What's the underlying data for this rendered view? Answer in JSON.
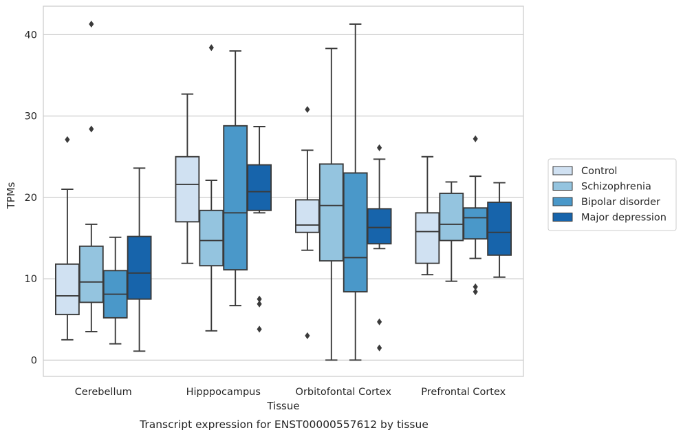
{
  "chart_data": {
    "type": "box",
    "title": "",
    "caption": "Transcript expression for ENST00000557612 by tissue",
    "xlabel": "Tissue",
    "ylabel": "TPMs",
    "ylim": [
      -2,
      43.5
    ],
    "yticks": [
      0,
      10,
      20,
      30,
      40
    ],
    "grid": "horizontal",
    "legend_position": "right",
    "categories": [
      "Cerebellum",
      "Hipppocampus",
      "Orbitofontal Cortex",
      "Prefrontal Cortex"
    ],
    "series": [
      {
        "name": "Control",
        "color": "#d0e1f2",
        "boxes": [
          {
            "whisker_low": 2.5,
            "q1": 5.6,
            "median": 7.9,
            "q3": 11.8,
            "whisker_high": 21.0,
            "outliers": [
              27.1
            ]
          },
          {
            "whisker_low": 11.9,
            "q1": 17.0,
            "median": 21.6,
            "q3": 25.0,
            "whisker_high": 32.7,
            "outliers": []
          },
          {
            "whisker_low": 13.5,
            "q1": 15.7,
            "median": 16.6,
            "q3": 19.7,
            "whisker_high": 25.8,
            "outliers": [
              30.8,
              3.0
            ]
          },
          {
            "whisker_low": 10.5,
            "q1": 11.9,
            "median": 15.8,
            "q3": 18.1,
            "whisker_high": 25.0,
            "outliers": []
          }
        ]
      },
      {
        "name": "Schizophrenia",
        "color": "#94c4df",
        "boxes": [
          {
            "whisker_low": 3.5,
            "q1": 7.1,
            "median": 9.6,
            "q3": 14.0,
            "whisker_high": 16.7,
            "outliers": [
              28.4,
              41.3
            ]
          },
          {
            "whisker_low": 3.6,
            "q1": 11.6,
            "median": 14.7,
            "q3": 18.4,
            "whisker_high": 22.1,
            "outliers": [
              38.4
            ]
          },
          {
            "whisker_low": 0.0,
            "q1": 12.2,
            "median": 19.0,
            "q3": 24.1,
            "whisker_high": 38.3,
            "outliers": []
          },
          {
            "whisker_low": 9.7,
            "q1": 14.7,
            "median": 16.7,
            "q3": 20.5,
            "whisker_high": 21.9,
            "outliers": []
          }
        ]
      },
      {
        "name": "Bipolar disorder",
        "color": "#4a98c9",
        "boxes": [
          {
            "whisker_low": 2.0,
            "q1": 5.2,
            "median": 8.1,
            "q3": 11.0,
            "whisker_high": 15.1,
            "outliers": []
          },
          {
            "whisker_low": 6.7,
            "q1": 11.1,
            "median": 18.1,
            "q3": 28.8,
            "whisker_high": 38.0,
            "outliers": []
          },
          {
            "whisker_low": 0.0,
            "q1": 8.4,
            "median": 12.6,
            "q3": 23.0,
            "whisker_high": 41.3,
            "outliers": []
          },
          {
            "whisker_low": 12.5,
            "q1": 14.9,
            "median": 17.5,
            "q3": 18.7,
            "whisker_high": 22.6,
            "outliers": [
              27.2,
              9.0,
              8.4
            ]
          }
        ]
      },
      {
        "name": "Major depression",
        "color": "#1764ab",
        "boxes": [
          {
            "whisker_low": 1.1,
            "q1": 7.5,
            "median": 10.7,
            "q3": 15.2,
            "whisker_high": 23.6,
            "outliers": []
          },
          {
            "whisker_low": 18.1,
            "q1": 18.4,
            "median": 20.7,
            "q3": 24.0,
            "whisker_high": 28.7,
            "outliers": [
              7.5,
              6.9,
              3.8
            ]
          },
          {
            "whisker_low": 13.7,
            "q1": 14.3,
            "median": 16.3,
            "q3": 18.6,
            "whisker_high": 24.7,
            "outliers": [
              26.1,
              4.7,
              1.5
            ]
          },
          {
            "whisker_low": 10.2,
            "q1": 12.9,
            "median": 15.7,
            "q3": 19.4,
            "whisker_high": 21.8,
            "outliers": []
          }
        ]
      }
    ]
  }
}
